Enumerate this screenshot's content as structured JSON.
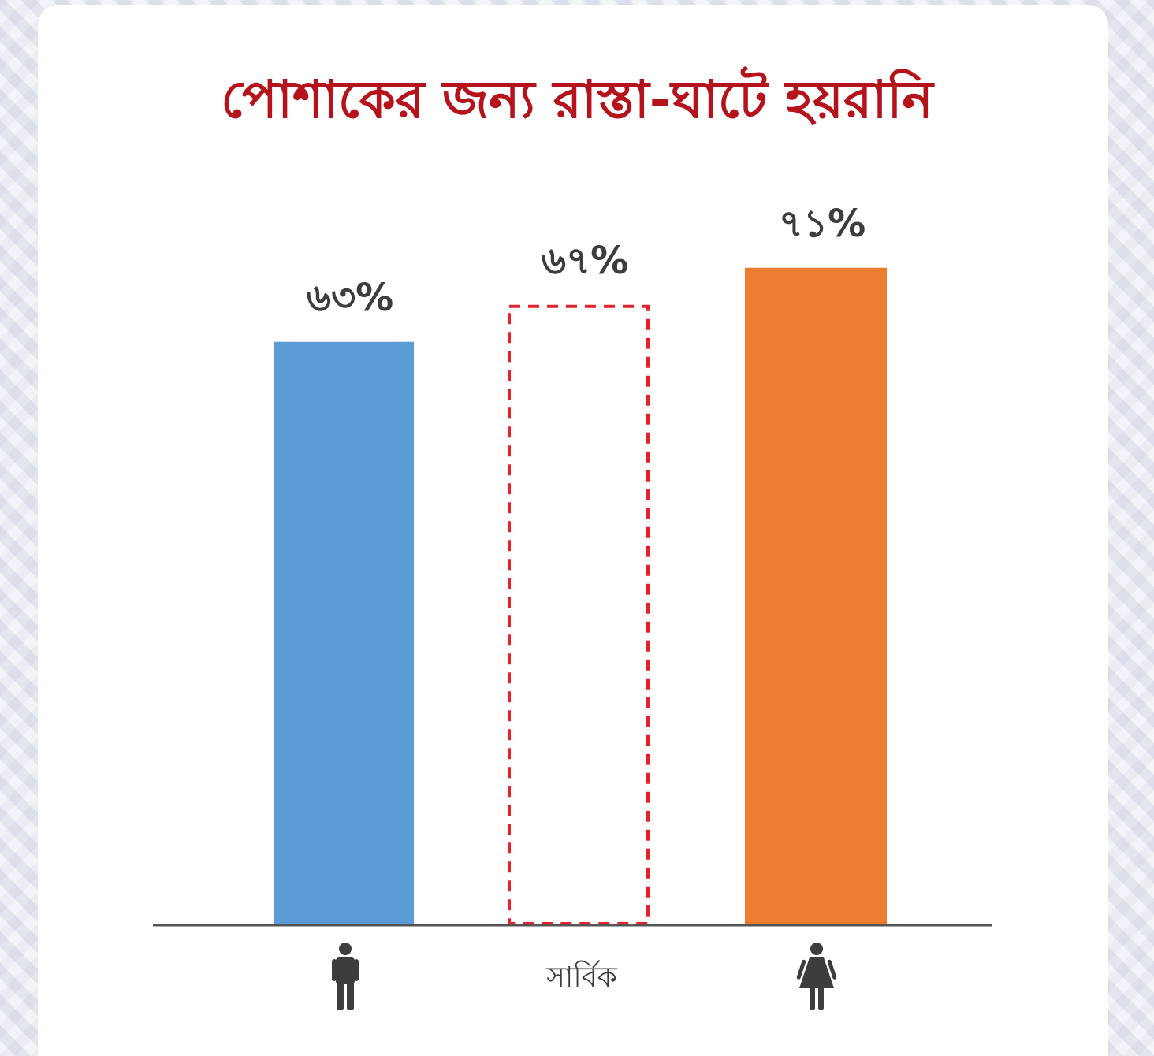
{
  "chart_data": {
    "type": "bar",
    "title": "পোশাকের জন্য রাস্তা-ঘাটে হয়রানি",
    "categories": [
      "male-icon",
      "সার্বিক",
      "female-icon"
    ],
    "values": [
      63,
      67,
      71
    ],
    "value_labels": [
      "৬৩%",
      "৬৭%",
      "৭১%"
    ],
    "bar_styles": [
      "solid",
      "dashed-outline",
      "solid"
    ],
    "bar_colors": [
      "#5b9bd5",
      "#e8222b",
      "#ed7d31"
    ],
    "ylim": [
      0,
      100
    ],
    "grid": false,
    "legend": "none"
  },
  "colors": {
    "title": "#b5121b",
    "axis": "#555555",
    "icon": "#3d3d3d"
  }
}
